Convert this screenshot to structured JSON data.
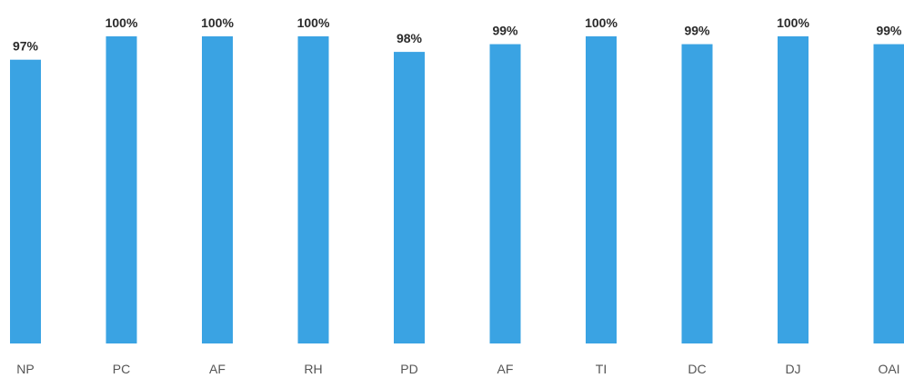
{
  "chart_data": {
    "type": "bar",
    "categories": [
      "NP",
      "PC",
      "AF",
      "RH",
      "PD",
      "AF",
      "TI",
      "DC",
      "DJ",
      "OAI"
    ],
    "values": [
      97,
      100,
      100,
      100,
      98,
      99,
      100,
      99,
      100,
      99
    ],
    "data_labels": [
      "97%",
      "100%",
      "100%",
      "100%",
      "98%",
      "99%",
      "100%",
      "99%",
      "100%",
      "99%"
    ],
    "ylim": [
      0,
      100
    ],
    "title": "",
    "xlabel": "",
    "ylabel": "",
    "grid": false,
    "colors": {
      "bar": "#3aa3e3",
      "label": "#2b2b2b",
      "tick": "#555555"
    }
  }
}
